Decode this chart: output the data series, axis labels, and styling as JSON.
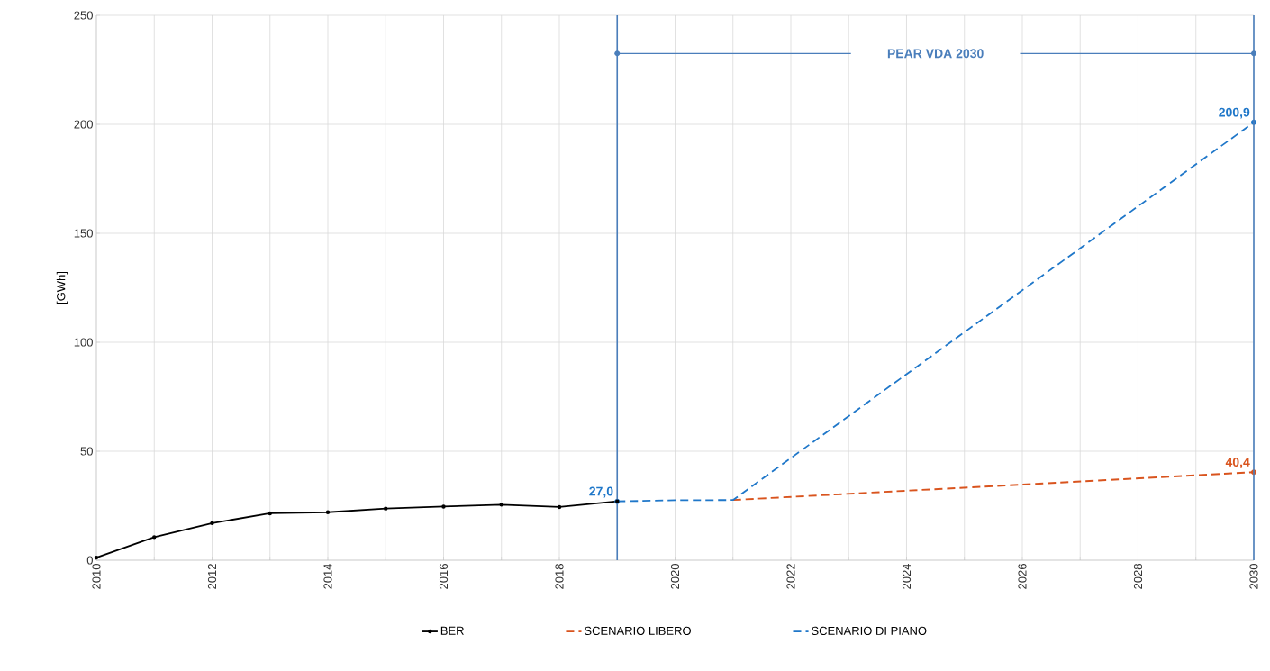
{
  "chart_data": {
    "type": "line",
    "ylabel": "[GWh]",
    "xlim": [
      2010,
      2030
    ],
    "ylim": [
      0,
      250
    ],
    "xticks": [
      2010,
      {
        "value": 2011,
        "label": null
      },
      2012,
      {
        "value": 2013,
        "label": null
      },
      2014,
      {
        "value": 2015,
        "label": null
      },
      2016,
      {
        "value": 2017,
        "label": null
      },
      2018,
      {
        "value": 2019,
        "label": null
      },
      2020,
      {
        "value": 2021,
        "label": null
      },
      2022,
      {
        "value": 2023,
        "label": null
      },
      2024,
      {
        "value": 2025,
        "label": null
      },
      2026,
      {
        "value": 2027,
        "label": null
      },
      2028,
      {
        "value": 2029,
        "label": null
      },
      2030
    ],
    "yticks": [
      0,
      50,
      100,
      150,
      200,
      250
    ],
    "grid": true,
    "legend": "bottom",
    "series": [
      {
        "name": "BER",
        "color": "#000000",
        "line_style": "solid",
        "marker": "circle",
        "x": [
          2010,
          2011,
          2012,
          2013,
          2014,
          2015,
          2016,
          2017,
          2018,
          2019
        ],
        "values": [
          1.2,
          10.6,
          17,
          21.5,
          22,
          23.7,
          24.6,
          25.5,
          24.4,
          27.0
        ]
      },
      {
        "name": "SCENARIO LIBERO",
        "color": "#d9541e",
        "line_style": "dashed",
        "marker": "none",
        "x": [
          2021,
          2030
        ],
        "values": [
          27.6,
          40.4
        ],
        "value_labels": [
          null,
          "40,4"
        ]
      },
      {
        "name": "SCENARIO DI PIANO",
        "color": "#1f77c9",
        "line_style": "dashed",
        "marker": "none",
        "x": [
          2019,
          2020,
          2021,
          2030
        ],
        "values": [
          27.0,
          27.5,
          27.6,
          200.9
        ],
        "value_labels": [
          "27,0",
          null,
          null,
          "200,9"
        ]
      }
    ],
    "ref_lines": [
      {
        "axis": "x",
        "value": 2019,
        "color": "#4a7ebb"
      },
      {
        "axis": "x",
        "value": 2030,
        "color": "#4a7ebb"
      }
    ],
    "annotations": [
      "PEAR VDA 2030"
    ]
  }
}
